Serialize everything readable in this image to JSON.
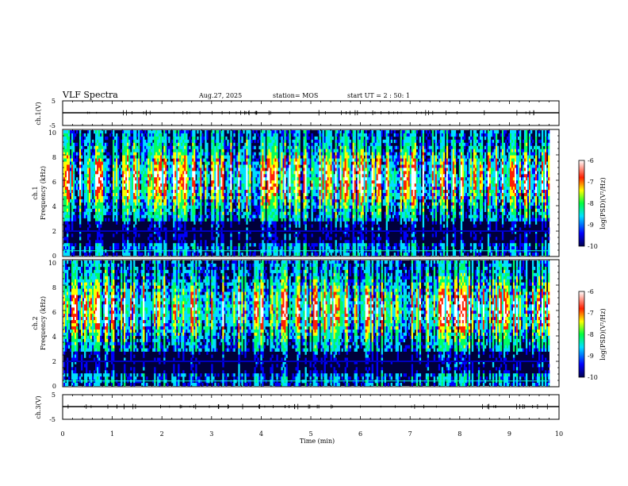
{
  "header": {
    "title": "VLF Spectra",
    "date": "Aug.27, 2025",
    "station": "station= MOS",
    "start": "start  UT =  2 : 50: 1"
  },
  "chart_data": [
    {
      "type": "line",
      "name": "ch1-waveform",
      "ylabel": "ch.1(V)",
      "ylim": [
        -5,
        5
      ],
      "yticks": [
        "5",
        "-5"
      ],
      "baseline_value": 0
    },
    {
      "type": "heatmap",
      "name": "ch1-spectrogram",
      "ylabel": "ch.1",
      "ylabel2": "Frequency (kHz)",
      "ylim": [
        0,
        10
      ],
      "yticks": [
        "0",
        "2",
        "4",
        "6",
        "8",
        "10"
      ],
      "colorbar": {
        "label": "log(PSD)(V²/Hz)",
        "ticks": [
          "-6",
          "-7",
          "-8",
          "-9",
          "-10"
        ],
        "range": [
          -10,
          -6
        ]
      }
    },
    {
      "type": "heatmap",
      "name": "ch2-spectrogram",
      "ylabel": "ch.2",
      "ylabel2": "Frequency (kHz)",
      "ylim": [
        0,
        10
      ],
      "yticks": [
        "0",
        "2",
        "4",
        "6",
        "8",
        "10"
      ],
      "colorbar": {
        "label": "log(PSD)(V²/Hz)",
        "ticks": [
          "-6",
          "-7",
          "-8",
          "-9",
          "-10"
        ],
        "range": [
          -10,
          -6
        ]
      }
    },
    {
      "type": "line",
      "name": "ch3-waveform",
      "ylabel": "ch.3(V)",
      "ylim": [
        -5,
        5
      ],
      "yticks": [
        "5",
        "-5"
      ],
      "baseline_value": 0
    }
  ],
  "xaxis": {
    "label": "Time  (min)",
    "xlim": [
      0,
      10
    ],
    "ticks": [
      "0",
      "1",
      "2",
      "3",
      "4",
      "5",
      "6",
      "7",
      "8",
      "9",
      "10"
    ]
  },
  "colors": {
    "background": "#ffffff",
    "ink": "#000000",
    "colormap": [
      "#000060",
      "#0000ff",
      "#00e0ff",
      "#00ff60",
      "#ffff00",
      "#ff2000",
      "#ffffff"
    ]
  }
}
